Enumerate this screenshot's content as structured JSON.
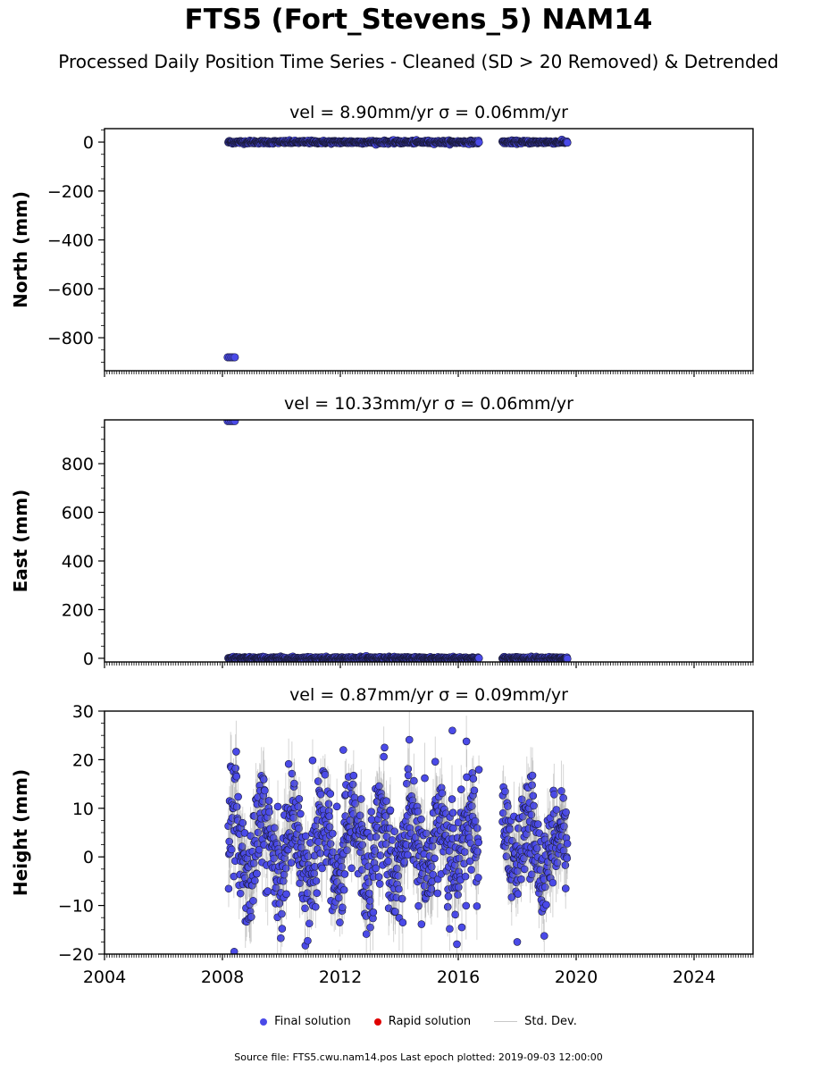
{
  "title": "FTS5 (Fort_Stevens_5) NAM14",
  "subtitle": "Processed Daily Position Time Series - Cleaned (SD > 20 Removed) & Detrended",
  "legend": {
    "final": "Final solution",
    "rapid": "Rapid solution",
    "std": "Std. Dev."
  },
  "colors": {
    "final": "#4a4ae8",
    "rapid": "#e00000",
    "std": "#c8c8c8",
    "marker_edge": "#1a1a3a"
  },
  "footer": "Source file: FTS5.cwu.nam14.pos  Last epoch plotted: 2019-09-03 12:00:00",
  "chart_data": [
    {
      "type": "scatter",
      "title": "vel = 8.90mm/yr   σ = 0.06mm/yr",
      "ylabel": "North (mm)",
      "xlim": [
        2004,
        2026
      ],
      "ylim": [
        -935,
        55
      ],
      "yticks": [
        0,
        -200,
        -400,
        -600,
        -800
      ],
      "ytick_labels": [
        "0",
        "−200",
        "−400",
        "−600",
        "−800"
      ],
      "outliers": [
        {
          "x": 2008.3,
          "y": -880
        }
      ],
      "segments": [
        {
          "from": 2008.2,
          "to": 2016.7,
          "mean": 0,
          "spread": 3
        },
        {
          "from": 2017.5,
          "to": 2019.7,
          "mean": 0,
          "spread": 3
        }
      ]
    },
    {
      "type": "scatter",
      "title": "vel = 10.33mm/yr   σ = 0.06mm/yr",
      "ylabel": "East (mm)",
      "xlim": [
        2004,
        2026
      ],
      "ylim": [
        -15,
        980
      ],
      "yticks": [
        0,
        200,
        400,
        600,
        800
      ],
      "ytick_labels": [
        "0",
        "200",
        "400",
        "600",
        "800"
      ],
      "outliers": [
        {
          "x": 2008.3,
          "y": 975
        }
      ],
      "segments": [
        {
          "from": 2008.2,
          "to": 2016.7,
          "mean": 0,
          "spread": 3
        },
        {
          "from": 2017.5,
          "to": 2019.7,
          "mean": 0,
          "spread": 3
        }
      ]
    },
    {
      "type": "scatter",
      "title": "vel = 0.87mm/yr   σ = 0.09mm/yr",
      "ylabel": "Height (mm)",
      "xlim": [
        2004,
        2026
      ],
      "ylim": [
        -20,
        30
      ],
      "yticks": [
        -20,
        -10,
        0,
        10,
        20,
        30
      ],
      "ytick_labels": [
        "−20",
        "−10",
        "0",
        "10",
        "20",
        "30"
      ],
      "xticks": [
        2004,
        2008,
        2012,
        2016,
        2020,
        2024
      ],
      "xtick_labels": [
        "2004",
        "2008",
        "2012",
        "2016",
        "2020",
        "2024"
      ],
      "outliers": [
        {
          "x": 2008.4,
          "y": -19.5
        },
        {
          "x": 2015.8,
          "y": 26
        },
        {
          "x": 2018.0,
          "y": -17.5
        },
        {
          "x": 2013.5,
          "y": 22.5
        },
        {
          "x": 2012.1,
          "y": 22
        }
      ],
      "segments": [
        {
          "from": 2008.2,
          "to": 2016.7,
          "mean": 2,
          "spread": 6,
          "seasonal": 6
        },
        {
          "from": 2017.5,
          "to": 2019.7,
          "mean": 2,
          "spread": 5,
          "seasonal": 5
        }
      ]
    }
  ]
}
